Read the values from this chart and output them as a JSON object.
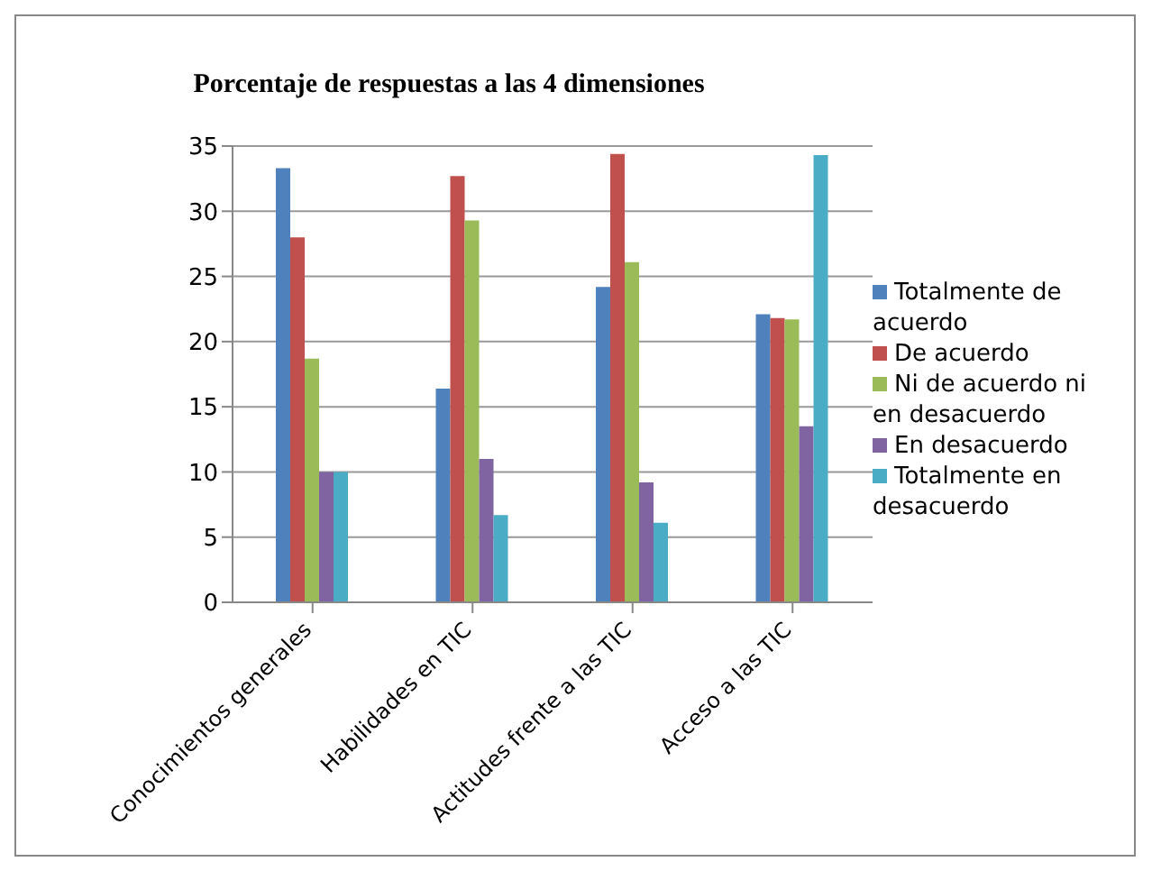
{
  "chart_data": {
    "type": "bar",
    "title": "Porcentaje de respuestas a las 4 dimensiones",
    "categories": [
      "Conocimientos generales",
      "Habilidades en  TIC",
      "Actitudes frente a las TIC",
      "Acceso a las TIC"
    ],
    "series": [
      {
        "name": "Totalmente de acuerdo",
        "color": "#4f81bd",
        "values": [
          33.3,
          16.4,
          24.2,
          22.1
        ]
      },
      {
        "name": "De acuerdo",
        "color": "#c0504d",
        "values": [
          28,
          32.7,
          34.4,
          21.8
        ]
      },
      {
        "name": "Ni de acuerdo ni en desacuerdo",
        "color": "#9bbb59",
        "values": [
          18.7,
          29.3,
          26.1,
          21.7
        ]
      },
      {
        "name": "En desacuerdo",
        "color": "#8064a2",
        "values": [
          10,
          11,
          9.2,
          13.5
        ]
      },
      {
        "name": "Totalmente en desacuerdo",
        "color": "#4bacc6",
        "values": [
          10,
          6.7,
          6.1,
          34.3
        ]
      }
    ],
    "ylim": [
      0,
      35
    ],
    "yticks": [
      0,
      5,
      10,
      15,
      20,
      25,
      30,
      35
    ],
    "grid": "y",
    "legend": "right"
  }
}
